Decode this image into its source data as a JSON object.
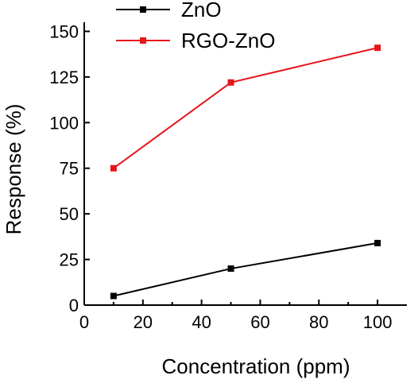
{
  "chart_data": {
    "type": "line",
    "title": "",
    "xlabel": "Concentration (ppm)",
    "ylabel": "Response (%)",
    "xlim": [
      0,
      110
    ],
    "ylim": [
      0,
      155
    ],
    "xticks": [
      0,
      20,
      40,
      60,
      80,
      100
    ],
    "yticks": [
      0,
      25,
      50,
      75,
      100,
      125,
      150
    ],
    "xtick_labels": [
      "0",
      "20",
      "40",
      "60",
      "80",
      "100"
    ],
    "ytick_labels": [
      "0",
      "25",
      "50",
      "75",
      "100",
      "125",
      "150"
    ],
    "grid": false,
    "legend_position": "top-center, outside plot",
    "series": [
      {
        "name": "ZnO",
        "color": "#000000",
        "marker": "square",
        "x": [
          10,
          50,
          100
        ],
        "y": [
          5,
          20,
          34
        ]
      },
      {
        "name": "RGO-ZnO",
        "color": "#e8141c",
        "marker": "square",
        "x": [
          10,
          50,
          100
        ],
        "y": [
          75,
          122,
          141
        ]
      }
    ]
  }
}
